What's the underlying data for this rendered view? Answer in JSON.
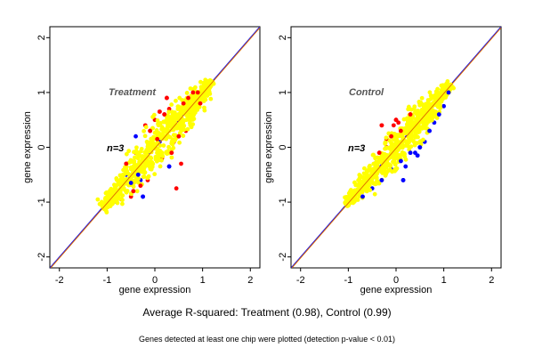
{
  "colors": {
    "red": "#ff0000",
    "blue": "#0000ff",
    "yellow": "#ffff00",
    "diag": "#e07000",
    "frame": "#000000"
  },
  "caption": "Average R-squared: Treatment (0.98), Control (0.99)",
  "footnote": "Genes detected at least one chip were plotted (detection p-value < 0.01)",
  "chart_data": [
    {
      "type": "scatter",
      "title": "Treatment",
      "annotation": "n=3",
      "xlabel": "gene expression",
      "ylabel": "gene expression",
      "xlim": [
        -2.2,
        2.2
      ],
      "ylim": [
        -2.2,
        2.2
      ],
      "xticks": [
        "-2",
        "-1",
        "0",
        "1",
        "2"
      ],
      "yticks": [
        "-2",
        "-1",
        "0",
        "1",
        "2"
      ],
      "diagonal": "y = x",
      "series": [
        {
          "color": "yellow",
          "cloud": {
            "x_range": [
              -1.1,
              1.2
            ],
            "spread": 0.09
          }
        },
        {
          "color": "red",
          "points": [
            [
              -0.9,
              -0.85
            ],
            [
              -0.6,
              -0.3
            ],
            [
              -0.5,
              -0.9
            ],
            [
              -0.3,
              -0.7
            ],
            [
              -0.2,
              0.4
            ],
            [
              -0.1,
              0.3
            ],
            [
              0.0,
              0.5
            ],
            [
              0.1,
              0.65
            ],
            [
              0.15,
              -0.2
            ],
            [
              0.2,
              0.6
            ],
            [
              0.3,
              0.7
            ],
            [
              0.35,
              -0.1
            ],
            [
              0.4,
              0.1
            ],
            [
              0.5,
              0.2
            ],
            [
              0.55,
              -0.3
            ],
            [
              0.6,
              0.8
            ],
            [
              0.65,
              0.3
            ],
            [
              0.7,
              0.9
            ],
            [
              0.75,
              0.6
            ],
            [
              0.8,
              1.0
            ],
            [
              0.85,
              0.7
            ],
            [
              0.9,
              1.0
            ],
            [
              -0.4,
              -0.1
            ],
            [
              -0.45,
              -0.8
            ],
            [
              0.45,
              -0.75
            ],
            [
              0.25,
              0.9
            ],
            [
              -0.15,
              -0.6
            ],
            [
              0.05,
              0.15
            ],
            [
              -0.7,
              -0.95
            ],
            [
              0.95,
              0.8
            ]
          ]
        },
        {
          "color": "blue",
          "points": [
            [
              -0.4,
              0.2
            ],
            [
              -0.5,
              -0.65
            ],
            [
              -0.3,
              -0.6
            ],
            [
              -0.25,
              -0.9
            ],
            [
              -0.8,
              -1.0
            ],
            [
              0.3,
              -0.35
            ],
            [
              0.1,
              0.1
            ],
            [
              -0.35,
              -0.5
            ],
            [
              -0.6,
              -0.5
            ]
          ]
        }
      ]
    },
    {
      "type": "scatter",
      "title": "Control",
      "annotation": "n=3",
      "xlabel": "gene expression",
      "ylabel": "gene expression",
      "xlim": [
        -2.2,
        2.2
      ],
      "ylim": [
        -2.2,
        2.2
      ],
      "xticks": [
        "-2",
        "-1",
        "0",
        "1",
        "2"
      ],
      "yticks": [
        "-2",
        "-1",
        "0",
        "1",
        "2"
      ],
      "diagonal": "y = x",
      "series": [
        {
          "color": "yellow",
          "cloud": {
            "x_range": [
              -1.05,
              1.15
            ],
            "spread": 0.08
          }
        },
        {
          "color": "blue",
          "points": [
            [
              -0.9,
              -1.0
            ],
            [
              -0.7,
              -0.9
            ],
            [
              -0.5,
              -0.75
            ],
            [
              -0.3,
              -0.6
            ],
            [
              -0.1,
              -0.4
            ],
            [
              0.1,
              -0.25
            ],
            [
              0.2,
              -0.35
            ],
            [
              0.3,
              -0.1
            ],
            [
              0.4,
              -0.1
            ],
            [
              0.5,
              0.0
            ],
            [
              0.6,
              0.1
            ],
            [
              0.7,
              0.3
            ],
            [
              0.8,
              0.45
            ],
            [
              0.9,
              0.6
            ],
            [
              1.0,
              0.75
            ],
            [
              1.1,
              1.0
            ],
            [
              -0.85,
              -0.95
            ],
            [
              0.15,
              -0.6
            ],
            [
              0.65,
              0.5
            ],
            [
              0.45,
              -0.15
            ]
          ]
        },
        {
          "color": "red",
          "points": [
            [
              -0.2,
              0.0
            ],
            [
              -0.1,
              0.2
            ],
            [
              -0.05,
              0.4
            ],
            [
              0.0,
              0.5
            ],
            [
              0.05,
              0.45
            ],
            [
              -0.3,
              0.4
            ],
            [
              -0.2,
              0.15
            ],
            [
              0.3,
              0.6
            ],
            [
              0.5,
              0.8
            ],
            [
              0.1,
              0.3
            ],
            [
              -0.45,
              -0.3
            ],
            [
              -0.35,
              -0.1
            ]
          ]
        }
      ]
    }
  ]
}
